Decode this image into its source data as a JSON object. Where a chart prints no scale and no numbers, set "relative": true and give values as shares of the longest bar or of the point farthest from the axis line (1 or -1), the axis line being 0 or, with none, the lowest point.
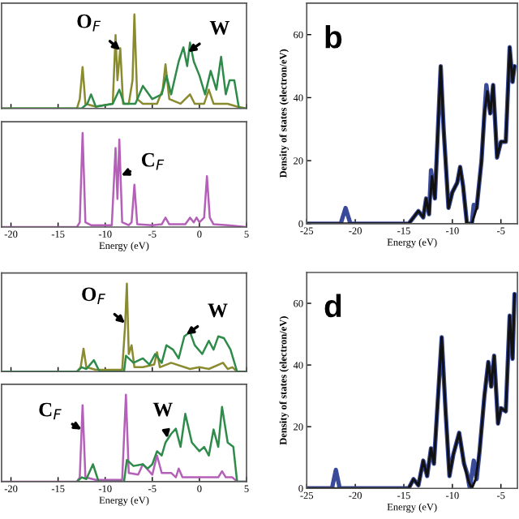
{
  "chart_data": [
    {
      "type": "line",
      "relative": true,
      "xlim": [
        -21,
        5
      ],
      "xticks": [
        -20,
        -15,
        -10,
        -5,
        0,
        5
      ],
      "tick_labels": false,
      "annotations": [
        {
          "text": "O$_{F}$",
          "x": -8.4,
          "y": 0.62
        },
        {
          "text": "W",
          "x": -1.2,
          "y": 0.6
        }
      ],
      "series": [
        {
          "color": "#8a8a2e",
          "x": [
            -21,
            -13,
            -12.7,
            -12.4,
            -12.1,
            -11,
            -9.2,
            -8.9,
            -8.7,
            -8.4,
            -8.1,
            -7.5,
            -7.1,
            -6.9,
            -6.6,
            -6,
            -4.5,
            -3.9,
            -3.6,
            -3.2,
            -2,
            -1,
            -0.5,
            0.5,
            1,
            1.5,
            3,
            4,
            5
          ],
          "values": [
            0,
            0,
            0.1,
            0.44,
            0.05,
            0.02,
            0.05,
            0.78,
            0.3,
            0.64,
            0.05,
            0.05,
            0.3,
            1.0,
            0.1,
            0.05,
            0.05,
            0.2,
            0.47,
            0.1,
            0.05,
            0.15,
            0.05,
            0.05,
            0.2,
            0.05,
            0.05,
            0.02,
            0
          ]
        },
        {
          "color": "#2e8b4a",
          "x": [
            -21,
            -12.5,
            -11.9,
            -11.5,
            -11,
            -9.2,
            -8.5,
            -8,
            -6.8,
            -6,
            -5,
            -4,
            -3.5,
            -3,
            -2.2,
            -1.7,
            -1.3,
            -1,
            -0.6,
            0,
            0.6,
            1.2,
            1.8,
            2.3,
            2.8,
            3.2,
            3.7,
            4.2,
            5
          ],
          "values": [
            0,
            0,
            0.05,
            0.15,
            0.02,
            0.05,
            0.2,
            0.05,
            0.05,
            0.24,
            0.1,
            0.15,
            0.35,
            0.15,
            0.5,
            0.65,
            0.45,
            0.7,
            0.5,
            0.35,
            0.15,
            0.4,
            0.2,
            0.55,
            0.15,
            0.3,
            0.3,
            0,
            0
          ]
        }
      ]
    },
    {
      "type": "line",
      "relative": true,
      "xlim": [
        -21,
        5
      ],
      "xticks": [
        -20,
        -15,
        -10,
        -5,
        0,
        5
      ],
      "xlabel": "Energy (eV)",
      "tick_labels": "x",
      "annotations": [
        {
          "text": "C$_{F}$",
          "x": -8.3,
          "y": 0.55
        }
      ],
      "series": [
        {
          "color": "#b560b8",
          "x": [
            -21,
            -13,
            -12.7,
            -12.4,
            -12.1,
            -11.5,
            -9.3,
            -8.9,
            -8.7,
            -8.5,
            -8.2,
            -7.5,
            -7.2,
            -6.9,
            -6.6,
            -5,
            -4,
            -3.6,
            -3.2,
            -1.5,
            -1,
            -0.6,
            -0.3,
            0,
            0.5,
            0.8,
            1.1,
            1.5,
            3,
            5
          ],
          "values": [
            0,
            0,
            0.05,
            1.0,
            0.05,
            0.02,
            0.02,
            0.84,
            0.3,
            0.93,
            0.05,
            0.02,
            0.05,
            0.45,
            0.03,
            0.02,
            0.03,
            0.1,
            0.03,
            0.03,
            0.1,
            0.05,
            0.1,
            0.05,
            0.1,
            0.54,
            0.1,
            0.03,
            0.02,
            0
          ]
        }
      ]
    },
    {
      "type": "line",
      "relative": true,
      "xlim": [
        -21,
        5
      ],
      "xticks": [
        -20,
        -15,
        -10,
        -5,
        0,
        5
      ],
      "tick_labels": false,
      "annotations": [
        {
          "text": "O$_{F}$",
          "x": -7.9,
          "y": 0.55
        },
        {
          "text": "W",
          "x": -1.4,
          "y": 0.42
        }
      ],
      "series": [
        {
          "color": "#8a8a2e",
          "x": [
            -21,
            -13,
            -12.6,
            -12.3,
            -12,
            -11,
            -8.2,
            -7.9,
            -7.7,
            -7.5,
            -7.2,
            -6.9,
            -6,
            -4.8,
            -4.5,
            -4.2,
            -3,
            -1,
            0,
            1,
            2.5,
            3,
            3.5,
            4,
            5
          ],
          "values": [
            0,
            0,
            0.05,
            0.26,
            0.05,
            0.02,
            0.02,
            0.5,
            1.0,
            0.2,
            0.3,
            0.05,
            0.05,
            0.08,
            0.22,
            0.05,
            0.1,
            0.03,
            0.05,
            0.03,
            0.1,
            0.03,
            0.05,
            0,
            0
          ]
        },
        {
          "color": "#2e8b4a",
          "x": [
            -21,
            -13,
            -12.5,
            -12,
            -11.2,
            -10.6,
            -8,
            -7.8,
            -7,
            -6,
            -5.3,
            -4.7,
            -4,
            -3.5,
            -2.8,
            -2.2,
            -1.6,
            -1,
            -0.5,
            0.3,
            1,
            1.5,
            2,
            2.6,
            3.3,
            4,
            5
          ],
          "values": [
            0,
            0,
            0.05,
            0.03,
            0.13,
            0,
            0,
            0.18,
            0.1,
            0.15,
            0.08,
            0.2,
            0.1,
            0.3,
            0.25,
            0.15,
            0.4,
            0.45,
            0.3,
            0.2,
            0.35,
            0.25,
            0.4,
            0.38,
            0.25,
            0,
            0
          ]
        }
      ]
    },
    {
      "type": "line",
      "relative": true,
      "xlim": [
        -21,
        5
      ],
      "xticks": [
        -20,
        -15,
        -10,
        -5,
        0,
        5
      ],
      "xlabel": "Energy (eV)",
      "tick_labels": "x",
      "annotations": [
        {
          "text": "C$_{F}$",
          "x": -12.5,
          "y": 0.6
        },
        {
          "text": "W",
          "x": -3.4,
          "y": 0.5
        }
      ],
      "series": [
        {
          "color": "#b560b8",
          "x": [
            -21,
            -13,
            -12.7,
            -12.4,
            -12.1,
            -11,
            -8.2,
            -7.8,
            -7.5,
            -6.5,
            -6,
            -5,
            -4.5,
            -4,
            -3,
            -2.5,
            -2.2,
            -1.8,
            -1,
            0.5,
            2,
            2.4,
            2.8,
            3.5,
            4,
            5
          ],
          "values": [
            0,
            0,
            0.05,
            0.88,
            0.05,
            0.02,
            0.02,
            1.0,
            0.1,
            0.08,
            0.2,
            0.08,
            0.3,
            0.1,
            0.1,
            0.05,
            0.15,
            0.05,
            0.05,
            0.05,
            0.05,
            0.12,
            0.05,
            0.05,
            0,
            0
          ]
        },
        {
          "color": "#2e8b4a",
          "x": [
            -13,
            -12.5,
            -12,
            -11.3,
            -10.7,
            -8,
            -7.7,
            -7,
            -6,
            -5.5,
            -5,
            -4.5,
            -4,
            -3.6,
            -3,
            -2.5,
            -2,
            -1.5,
            -0.8,
            0,
            0.5,
            1,
            1.5,
            2,
            2.4,
            3,
            3.6,
            4,
            5
          ],
          "values": [
            0,
            0.05,
            0.03,
            0.2,
            0,
            0,
            0.25,
            0.18,
            0.2,
            0.15,
            0.2,
            0.35,
            0.3,
            0.45,
            0.55,
            0.61,
            0.4,
            0.78,
            0.45,
            0.35,
            0.4,
            0.3,
            0.6,
            0.4,
            0.86,
            0.45,
            0.4,
            0,
            0
          ]
        }
      ]
    },
    {
      "type": "line",
      "xlim": [
        -25,
        -3.3
      ],
      "ylim": [
        0,
        70
      ],
      "xticks": [
        -25,
        -20,
        -15,
        -10,
        -5
      ],
      "yticks": [
        0,
        20,
        40,
        60
      ],
      "xlabel": "Energy (eV)",
      "ylabel": "Density of states (electron/eV)",
      "annotations": [
        "b"
      ],
      "series": [
        {
          "color": "#3a4a9a",
          "x": [
            -25,
            -21.5,
            -21,
            -20.5,
            -15,
            -14.5,
            -14,
            -13.5,
            -13,
            -12.7,
            -12.4,
            -12.2,
            -11.8,
            -11.2,
            -10.9,
            -10.4,
            -10,
            -9.5,
            -9.2,
            -8.9,
            -8.5,
            -8,
            -7.8,
            -7.5,
            -7,
            -6.7,
            -6.5,
            -6.1,
            -5.8,
            -5.4,
            -5,
            -4.5,
            -4.1,
            -3.8,
            -3.6
          ],
          "values": [
            0,
            0,
            5,
            0,
            0,
            0,
            2,
            4,
            2,
            8,
            3,
            17,
            8,
            50,
            30,
            5,
            10,
            13,
            18,
            12,
            0,
            0,
            6,
            5,
            20,
            35,
            44,
            35,
            44,
            21,
            26,
            26,
            56,
            45,
            50
          ]
        },
        {
          "color": "#111111",
          "x": [
            -25,
            -15,
            -14.5,
            -14,
            -13.5,
            -13,
            -12.7,
            -12.4,
            -12.1,
            -11.8,
            -11.2,
            -10.9,
            -10.4,
            -10,
            -9.5,
            -9.2,
            -8.9,
            -8.5,
            -8,
            -7.5,
            -7,
            -6.7,
            -6.4,
            -6.1,
            -5.8,
            -5.4,
            -5,
            -4.5,
            -4.1,
            -3.8,
            -3.6
          ],
          "values": [
            0,
            0,
            0,
            2,
            4,
            2,
            8,
            3,
            15,
            8,
            50,
            30,
            5,
            10,
            13,
            18,
            12,
            0,
            0,
            5,
            20,
            35,
            42,
            35,
            44,
            21,
            26,
            26,
            56,
            45,
            50
          ]
        }
      ]
    },
    {
      "type": "line",
      "xlim": [
        -25,
        -3.3
      ],
      "ylim": [
        0,
        70
      ],
      "xticks": [
        -25,
        -20,
        -15,
        -10,
        -5
      ],
      "yticks": [
        0,
        20,
        40,
        60
      ],
      "xlabel": "Energy (eV)",
      "ylabel": "Density of states (electron/eV)",
      "annotations": [
        "d"
      ],
      "series": [
        {
          "color": "#3a4a9a",
          "x": [
            -25,
            -22.4,
            -22,
            -21.6,
            -15,
            -14.5,
            -14,
            -13.5,
            -13,
            -12.6,
            -12.2,
            -11.9,
            -11.1,
            -10.7,
            -10.3,
            -9.9,
            -9.3,
            -8.8,
            -8.5,
            -8.2,
            -7.8,
            -7.5,
            -7.2,
            -6.7,
            -6.3,
            -6,
            -5.7,
            -5.3,
            -5,
            -4.5,
            -4.1,
            -3.8,
            -3.6
          ],
          "values": [
            0,
            0,
            6,
            0,
            0,
            0,
            3,
            1,
            9,
            4,
            13,
            8,
            49,
            25,
            4,
            11,
            18,
            8,
            5,
            0,
            9,
            3,
            12,
            30,
            41,
            33,
            43,
            21,
            26,
            25,
            56,
            42,
            63
          ]
        },
        {
          "color": "#111111",
          "x": [
            -25,
            -15,
            -14.5,
            -14,
            -13.5,
            -13,
            -12.6,
            -12.2,
            -11.9,
            -11.1,
            -10.7,
            -10.3,
            -9.9,
            -9.3,
            -8.8,
            -8.3,
            -8,
            -7.6,
            -7.2,
            -6.7,
            -6.3,
            -6,
            -5.7,
            -5.3,
            -5,
            -4.5,
            -4.1,
            -3.8,
            -3.6
          ],
          "values": [
            0,
            0,
            0,
            3,
            1,
            9,
            4,
            13,
            8,
            49,
            25,
            4,
            11,
            18,
            8,
            2,
            0,
            3,
            12,
            30,
            41,
            33,
            43,
            21,
            26,
            25,
            56,
            42,
            63
          ]
        }
      ]
    }
  ]
}
